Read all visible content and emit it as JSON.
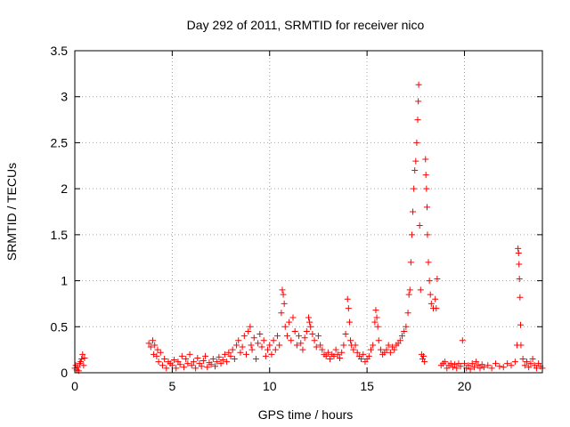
{
  "chart_data": {
    "type": "scatter",
    "title": "Day 292 of 2011, SRMTID for receiver nico",
    "xlabel": "GPS time / hours",
    "ylabel": "SRMTID / TECUs",
    "xlim": [
      0,
      24
    ],
    "ylim": [
      0,
      3.5
    ],
    "grid": true,
    "marker": "+",
    "marker_color": "#ff0000",
    "xticks": [
      {
        "value": 0,
        "label": "0"
      },
      {
        "value": 5,
        "label": "5"
      },
      {
        "value": 10,
        "label": "10"
      },
      {
        "value": 15,
        "label": "15"
      },
      {
        "value": 20,
        "label": "20"
      }
    ],
    "yticks": [
      {
        "value": 0,
        "label": "0"
      },
      {
        "value": 0.5,
        "label": "0.5"
      },
      {
        "value": 1,
        "label": "1"
      },
      {
        "value": 1.5,
        "label": "1.5"
      },
      {
        "value": 2,
        "label": "2"
      },
      {
        "value": 2.5,
        "label": "2.5"
      },
      {
        "value": 3,
        "label": "3"
      },
      {
        "value": 3.5,
        "label": "3.5"
      }
    ],
    "points": [
      [
        0.0,
        0.05
      ],
      [
        0.05,
        0.08
      ],
      [
        0.1,
        0.03
      ],
      [
        0.15,
        0.06
      ],
      [
        0.2,
        0.02
      ],
      [
        0.25,
        0.1
      ],
      [
        0.3,
        0.12
      ],
      [
        0.35,
        0.15
      ],
      [
        0.4,
        0.2
      ],
      [
        0.45,
        0.08
      ],
      [
        0.5,
        0.16
      ],
      [
        3.8,
        0.32
      ],
      [
        3.9,
        0.28
      ],
      [
        4.0,
        0.35
      ],
      [
        4.05,
        0.2
      ],
      [
        4.1,
        0.3
      ],
      [
        4.2,
        0.18
      ],
      [
        4.25,
        0.25
      ],
      [
        4.3,
        0.12
      ],
      [
        4.4,
        0.22
      ],
      [
        4.5,
        0.08
      ],
      [
        4.6,
        0.15
      ],
      [
        4.7,
        0.05
      ],
      [
        4.8,
        0.12
      ],
      [
        4.9,
        0.1
      ],
      [
        5.0,
        0.08
      ],
      [
        5.1,
        0.14
      ],
      [
        5.2,
        0.05
      ],
      [
        5.3,
        0.12
      ],
      [
        5.4,
        0.09
      ],
      [
        5.5,
        0.18
      ],
      [
        5.6,
        0.06
      ],
      [
        5.7,
        0.15
      ],
      [
        5.8,
        0.1
      ],
      [
        5.9,
        0.2
      ],
      [
        6.0,
        0.08
      ],
      [
        6.1,
        0.12
      ],
      [
        6.2,
        0.05
      ],
      [
        6.3,
        0.16
      ],
      [
        6.4,
        0.1
      ],
      [
        6.5,
        0.07
      ],
      [
        6.6,
        0.13
      ],
      [
        6.7,
        0.18
      ],
      [
        6.8,
        0.06
      ],
      [
        6.9,
        0.11
      ],
      [
        7.0,
        0.09
      ],
      [
        7.1,
        0.15
      ],
      [
        7.2,
        0.07
      ],
      [
        7.3,
        0.12
      ],
      [
        7.4,
        0.17
      ],
      [
        7.5,
        0.1
      ],
      [
        7.6,
        0.14
      ],
      [
        7.7,
        0.2
      ],
      [
        7.8,
        0.12
      ],
      [
        7.9,
        0.22
      ],
      [
        8.0,
        0.18
      ],
      [
        8.1,
        0.25
      ],
      [
        8.2,
        0.15
      ],
      [
        8.3,
        0.3
      ],
      [
        8.4,
        0.35
      ],
      [
        8.5,
        0.22
      ],
      [
        8.6,
        0.28
      ],
      [
        8.7,
        0.4
      ],
      [
        8.8,
        0.2
      ],
      [
        8.9,
        0.45
      ],
      [
        9.0,
        0.5
      ],
      [
        9.05,
        0.3
      ],
      [
        9.1,
        0.25
      ],
      [
        9.2,
        0.38
      ],
      [
        9.3,
        0.15
      ],
      [
        9.4,
        0.32
      ],
      [
        9.5,
        0.42
      ],
      [
        9.6,
        0.28
      ],
      [
        9.7,
        0.35
      ],
      [
        9.8,
        0.18
      ],
      [
        9.9,
        0.25
      ],
      [
        10.0,
        0.3
      ],
      [
        10.1,
        0.2
      ],
      [
        10.2,
        0.35
      ],
      [
        10.3,
        0.25
      ],
      [
        10.4,
        0.4
      ],
      [
        10.5,
        0.3
      ],
      [
        10.6,
        0.65
      ],
      [
        10.65,
        0.9
      ],
      [
        10.7,
        0.85
      ],
      [
        10.75,
        0.75
      ],
      [
        10.8,
        0.5
      ],
      [
        10.9,
        0.4
      ],
      [
        11.0,
        0.55
      ],
      [
        11.1,
        0.35
      ],
      [
        11.2,
        0.6
      ],
      [
        11.3,
        0.45
      ],
      [
        11.4,
        0.3
      ],
      [
        11.5,
        0.4
      ],
      [
        11.6,
        0.32
      ],
      [
        11.7,
        0.25
      ],
      [
        11.8,
        0.38
      ],
      [
        11.9,
        0.45
      ],
      [
        12.0,
        0.6
      ],
      [
        12.05,
        0.55
      ],
      [
        12.1,
        0.5
      ],
      [
        12.2,
        0.42
      ],
      [
        12.3,
        0.35
      ],
      [
        12.4,
        0.28
      ],
      [
        12.5,
        0.4
      ],
      [
        12.6,
        0.3
      ],
      [
        12.7,
        0.25
      ],
      [
        12.8,
        0.2
      ],
      [
        12.9,
        0.18
      ],
      [
        13.0,
        0.22
      ],
      [
        13.1,
        0.15
      ],
      [
        13.2,
        0.2
      ],
      [
        13.3,
        0.18
      ],
      [
        13.4,
        0.25
      ],
      [
        13.5,
        0.2
      ],
      [
        13.6,
        0.16
      ],
      [
        13.7,
        0.22
      ],
      [
        13.8,
        0.3
      ],
      [
        13.9,
        0.42
      ],
      [
        14.0,
        0.8
      ],
      [
        14.05,
        0.7
      ],
      [
        14.1,
        0.55
      ],
      [
        14.15,
        0.35
      ],
      [
        14.2,
        0.3
      ],
      [
        14.3,
        0.25
      ],
      [
        14.4,
        0.3
      ],
      [
        14.5,
        0.22
      ],
      [
        14.6,
        0.18
      ],
      [
        14.7,
        0.15
      ],
      [
        14.8,
        0.2
      ],
      [
        14.9,
        0.12
      ],
      [
        15.0,
        0.15
      ],
      [
        15.1,
        0.18
      ],
      [
        15.2,
        0.25
      ],
      [
        15.3,
        0.3
      ],
      [
        15.4,
        0.55
      ],
      [
        15.45,
        0.68
      ],
      [
        15.5,
        0.6
      ],
      [
        15.55,
        0.5
      ],
      [
        15.6,
        0.35
      ],
      [
        15.7,
        0.25
      ],
      [
        15.8,
        0.2
      ],
      [
        15.9,
        0.22
      ],
      [
        16.0,
        0.25
      ],
      [
        16.1,
        0.3
      ],
      [
        16.2,
        0.22
      ],
      [
        16.3,
        0.28
      ],
      [
        16.4,
        0.25
      ],
      [
        16.5,
        0.3
      ],
      [
        16.6,
        0.32
      ],
      [
        16.7,
        0.35
      ],
      [
        16.8,
        0.4
      ],
      [
        16.9,
        0.45
      ],
      [
        17.0,
        0.5
      ],
      [
        17.1,
        0.65
      ],
      [
        17.15,
        0.85
      ],
      [
        17.2,
        0.9
      ],
      [
        17.25,
        1.2
      ],
      [
        17.3,
        1.5
      ],
      [
        17.35,
        1.75
      ],
      [
        17.4,
        2.0
      ],
      [
        17.45,
        2.2
      ],
      [
        17.5,
        2.3
      ],
      [
        17.55,
        2.5
      ],
      [
        17.6,
        2.75
      ],
      [
        17.63,
        2.95
      ],
      [
        17.65,
        3.13
      ],
      [
        17.7,
        1.6
      ],
      [
        17.75,
        0.9
      ],
      [
        17.8,
        0.2
      ],
      [
        17.85,
        0.15
      ],
      [
        17.9,
        0.18
      ],
      [
        17.95,
        0.12
      ],
      [
        18.0,
        2.32
      ],
      [
        18.02,
        2.15
      ],
      [
        18.05,
        2.0
      ],
      [
        18.08,
        1.8
      ],
      [
        18.1,
        1.5
      ],
      [
        18.15,
        1.2
      ],
      [
        18.2,
        1.0
      ],
      [
        18.25,
        0.85
      ],
      [
        18.3,
        0.75
      ],
      [
        18.4,
        0.7
      ],
      [
        18.5,
        0.8
      ],
      [
        18.55,
        0.7
      ],
      [
        18.6,
        1.02
      ],
      [
        18.8,
        0.08
      ],
      [
        18.9,
        0.1
      ],
      [
        19.0,
        0.12
      ],
      [
        19.1,
        0.05
      ],
      [
        19.2,
        0.08
      ],
      [
        19.3,
        0.1
      ],
      [
        19.4,
        0.06
      ],
      [
        19.5,
        0.09
      ],
      [
        19.6,
        0.05
      ],
      [
        19.7,
        0.1
      ],
      [
        19.8,
        0.07
      ],
      [
        19.9,
        0.35
      ],
      [
        20.0,
        0.1
      ],
      [
        20.1,
        0.05
      ],
      [
        20.2,
        0.08
      ],
      [
        20.3,
        0.04
      ],
      [
        20.4,
        0.1
      ],
      [
        20.5,
        0.06
      ],
      [
        20.6,
        0.12
      ],
      [
        20.7,
        0.08
      ],
      [
        20.8,
        0.05
      ],
      [
        20.9,
        0.09
      ],
      [
        21.0,
        0.06
      ],
      [
        21.2,
        0.08
      ],
      [
        21.4,
        0.05
      ],
      [
        21.6,
        0.1
      ],
      [
        21.8,
        0.07
      ],
      [
        22.0,
        0.06
      ],
      [
        22.2,
        0.1
      ],
      [
        22.4,
        0.08
      ],
      [
        22.6,
        0.12
      ],
      [
        22.7,
        0.3
      ],
      [
        22.75,
        1.35
      ],
      [
        22.78,
        1.3
      ],
      [
        22.8,
        1.18
      ],
      [
        22.82,
        1.02
      ],
      [
        22.85,
        0.82
      ],
      [
        22.88,
        0.52
      ],
      [
        22.9,
        0.3
      ],
      [
        23.0,
        0.15
      ],
      [
        23.1,
        0.08
      ],
      [
        23.2,
        0.12
      ],
      [
        23.3,
        0.06
      ],
      [
        23.4,
        0.1
      ],
      [
        23.5,
        0.15
      ],
      [
        23.6,
        0.08
      ],
      [
        23.7,
        0.05
      ],
      [
        23.8,
        0.1
      ],
      [
        23.9,
        0.07
      ],
      [
        24.0,
        0.05
      ]
    ]
  }
}
